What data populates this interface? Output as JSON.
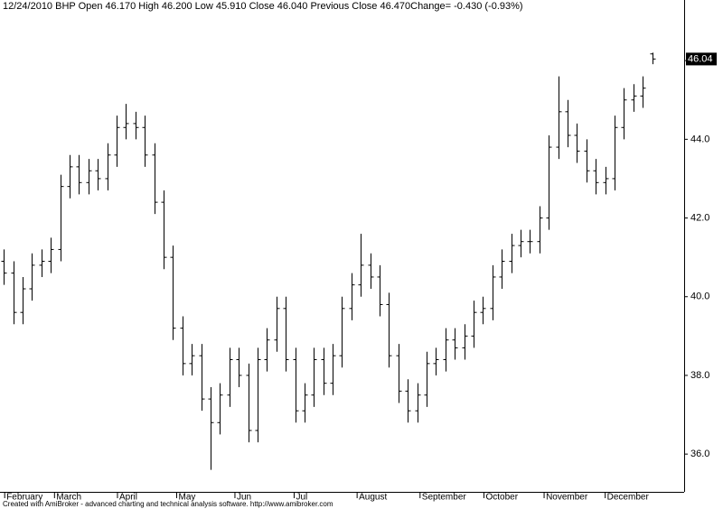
{
  "chart_data": {
    "type": "ohlc",
    "title": "12/24/2010 BHP Open  46.170 High  46.200 Low  45.910 Close  46.040 Previous Close  46.470Change=  -0.430 (-0.93%)",
    "footer": "Created with AmiBroker - advanced charting and technical analysis software. http://www.amibroker.com",
    "last_price_label": "46.04",
    "color": "#000000",
    "xlim": [
      -0.4,
      72.4
    ],
    "xticks": [
      {
        "value": 0.1,
        "label": "February"
      },
      {
        "value": 5.4,
        "label": "March"
      },
      {
        "value": 12.1,
        "label": "April"
      },
      {
        "value": 18.4,
        "label": "May"
      },
      {
        "value": 24.6,
        "label": "Jun"
      },
      {
        "value": 30.9,
        "label": "Jul"
      },
      {
        "value": 37.6,
        "label": "August"
      },
      {
        "value": 44.3,
        "label": "September"
      },
      {
        "value": 51.1,
        "label": "October"
      },
      {
        "value": 57.5,
        "label": "November"
      },
      {
        "value": 64.0,
        "label": "December"
      }
    ],
    "ylim": [
      35.04,
      47.54
    ],
    "yticks": [
      {
        "value": 36,
        "label": "36.0"
      },
      {
        "value": 38,
        "label": "38.0"
      },
      {
        "value": 40,
        "label": "40.0"
      },
      {
        "value": 42,
        "label": "42.0"
      },
      {
        "value": 44,
        "label": "44.0"
      },
      {
        "value": 46,
        "label": "46.0"
      }
    ],
    "open": [
      40.9,
      40.6,
      39.6,
      40.2,
      40.8,
      40.9,
      41.2,
      42.8,
      43.3,
      42.9,
      43.2,
      43.0,
      43.6,
      44.3,
      44.4,
      44.3,
      43.6,
      42.4,
      41.0,
      39.2,
      38.3,
      38.5,
      37.4,
      36.8,
      37.5,
      38.4,
      38.0,
      36.6,
      38.4,
      38.9,
      39.7,
      38.4,
      37.1,
      37.5,
      38.4,
      37.8,
      38.5,
      39.7,
      40.3,
      40.8,
      40.5,
      39.8,
      38.5,
      37.6,
      37.1,
      37.5,
      38.3,
      38.4,
      38.9,
      38.7,
      39.0,
      39.6,
      39.7,
      40.5,
      40.9,
      41.3,
      41.4,
      41.4,
      42.0,
      43.8,
      44.7,
      44.1,
      43.7,
      43.2,
      42.9,
      43.0,
      44.3,
      45.0,
      45.1,
      46.17
    ],
    "high": [
      41.2,
      40.9,
      40.5,
      41.1,
      41.2,
      41.5,
      43.1,
      43.6,
      43.6,
      43.5,
      43.5,
      43.9,
      44.6,
      44.9,
      44.7,
      44.6,
      43.9,
      42.7,
      41.3,
      39.5,
      38.8,
      38.8,
      37.7,
      37.8,
      38.7,
      38.7,
      38.3,
      38.7,
      39.2,
      40.0,
      40.0,
      38.7,
      37.8,
      38.7,
      38.7,
      38.8,
      40.0,
      40.6,
      41.6,
      41.1,
      40.8,
      40.1,
      38.8,
      37.9,
      37.8,
      38.6,
      38.7,
      39.2,
      39.2,
      39.3,
      39.9,
      40.0,
      40.8,
      41.2,
      41.6,
      41.7,
      41.7,
      42.3,
      44.1,
      45.6,
      45.0,
      44.4,
      44.0,
      43.5,
      43.3,
      44.6,
      45.3,
      45.4,
      45.6,
      46.2
    ],
    "low": [
      40.3,
      39.3,
      39.3,
      39.9,
      40.5,
      40.6,
      40.9,
      42.5,
      42.6,
      42.6,
      42.7,
      42.7,
      43.3,
      44.0,
      44.0,
      43.3,
      42.1,
      40.7,
      38.9,
      38.0,
      38.0,
      37.1,
      35.6,
      36.5,
      37.2,
      37.7,
      36.3,
      36.3,
      38.1,
      38.6,
      38.1,
      36.8,
      36.8,
      37.2,
      37.5,
      37.5,
      38.2,
      39.4,
      40.0,
      40.2,
      39.5,
      38.2,
      37.3,
      36.8,
      36.8,
      37.2,
      38.0,
      38.1,
      38.4,
      38.4,
      38.7,
      39.3,
      39.4,
      40.2,
      40.6,
      41.0,
      41.1,
      41.1,
      41.7,
      43.5,
      43.8,
      43.4,
      42.9,
      42.6,
      42.6,
      42.7,
      44.0,
      44.7,
      44.8,
      45.91
    ],
    "close": [
      40.6,
      39.6,
      40.2,
      40.8,
      40.9,
      41.2,
      42.8,
      43.3,
      42.9,
      43.2,
      43.0,
      43.6,
      44.3,
      44.4,
      44.3,
      43.6,
      42.4,
      41.0,
      39.2,
      38.3,
      38.5,
      37.4,
      36.8,
      37.5,
      38.4,
      38.0,
      36.6,
      38.4,
      38.9,
      39.7,
      38.4,
      37.1,
      37.5,
      38.4,
      37.8,
      38.5,
      39.7,
      40.3,
      40.8,
      40.5,
      39.8,
      38.5,
      37.6,
      37.1,
      37.5,
      38.3,
      38.4,
      38.9,
      38.7,
      39.0,
      39.6,
      39.7,
      40.5,
      40.9,
      41.3,
      41.4,
      41.4,
      42.0,
      43.8,
      44.7,
      44.1,
      43.7,
      43.2,
      42.9,
      43.0,
      44.3,
      45.0,
      45.1,
      45.3,
      46.04
    ]
  }
}
